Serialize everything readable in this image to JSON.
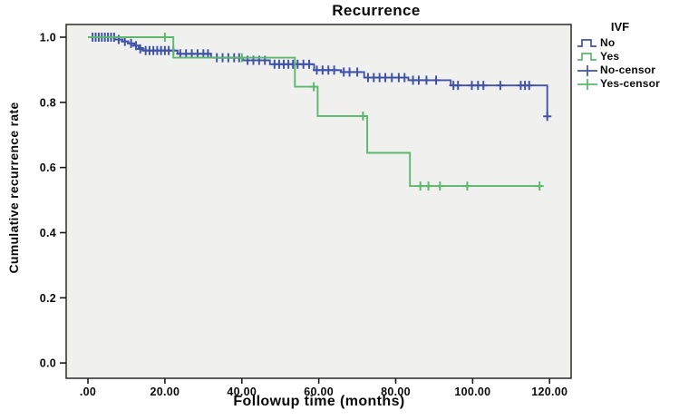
{
  "chart_data": {
    "type": "line",
    "subtype": "kaplan-meier-step",
    "title": "Recurrence",
    "xlabel": "Followup time (months)",
    "ylabel": "Cumulative recurrence rate",
    "grid": false,
    "plot_bg": "#f0f0ef",
    "border_color": "#2a2a2a",
    "xlim": [
      -5.66,
      125.6
    ],
    "ylim": [
      -0.047,
      1.039
    ],
    "x_ticks": [
      {
        "value": 0,
        "label": ".00"
      },
      {
        "value": 20,
        "label": "20.00"
      },
      {
        "value": 40,
        "label": "40.00"
      },
      {
        "value": 60,
        "label": "60.00"
      },
      {
        "value": 80,
        "label": "80.00"
      },
      {
        "value": 100,
        "label": "100.00"
      },
      {
        "value": 120,
        "label": "120.00"
      }
    ],
    "y_ticks": [
      {
        "value": 1.0,
        "label": "1.0"
      },
      {
        "value": 0.8,
        "label": "0.8"
      },
      {
        "value": 0.6,
        "label": "0.6"
      },
      {
        "value": 0.4,
        "label": "0.4"
      },
      {
        "value": 0.2,
        "label": "0.2"
      },
      {
        "value": 0.0,
        "label": "0.0"
      }
    ],
    "legend": {
      "title": "IVF",
      "position": "right",
      "items": [
        {
          "label": "No",
          "symbol": "step-line",
          "color": "#4153a7"
        },
        {
          "label": "Yes",
          "symbol": "step-line",
          "color": "#5cb86c"
        },
        {
          "label": "No-censor",
          "symbol": "plus",
          "color": "#4153a7"
        },
        {
          "label": "Yes-censor",
          "symbol": "plus",
          "color": "#5cb86c"
        }
      ]
    },
    "series": [
      {
        "name": "No",
        "color": "#4153a7",
        "end": 119.7,
        "steps": [
          [
            0,
            1.0
          ],
          [
            7,
            0.993
          ],
          [
            9,
            0.987
          ],
          [
            10.5,
            0.981
          ],
          [
            12,
            0.974
          ],
          [
            13.2,
            0.967
          ],
          [
            14.3,
            0.959
          ],
          [
            23.3,
            0.949
          ],
          [
            32,
            0.937
          ],
          [
            40.3,
            0.929
          ],
          [
            47.3,
            0.917
          ],
          [
            58.8,
            0.899
          ],
          [
            65.8,
            0.893
          ],
          [
            71.8,
            0.876
          ],
          [
            83.3,
            0.868
          ],
          [
            94.3,
            0.852
          ],
          [
            119.4,
            0.757
          ]
        ],
        "censors": [
          [
            1.2,
            1.0
          ],
          [
            2,
            1.0
          ],
          [
            2.8,
            1.0
          ],
          [
            3.6,
            1.0
          ],
          [
            4.4,
            1.0
          ],
          [
            5.2,
            1.0
          ],
          [
            6,
            1.0
          ],
          [
            6.8,
            1.0
          ],
          [
            8,
            0.993
          ],
          [
            9.6,
            0.987
          ],
          [
            11.2,
            0.981
          ],
          [
            12.5,
            0.974
          ],
          [
            13.6,
            0.964
          ],
          [
            15,
            0.959
          ],
          [
            16,
            0.959
          ],
          [
            17,
            0.959
          ],
          [
            18,
            0.959
          ],
          [
            19,
            0.959
          ],
          [
            20,
            0.959
          ],
          [
            21,
            0.959
          ],
          [
            22.2,
            0.959
          ],
          [
            24,
            0.949
          ],
          [
            25.5,
            0.949
          ],
          [
            27,
            0.949
          ],
          [
            28.5,
            0.949
          ],
          [
            30,
            0.949
          ],
          [
            31.2,
            0.949
          ],
          [
            33.5,
            0.937
          ],
          [
            35,
            0.937
          ],
          [
            36.5,
            0.937
          ],
          [
            38,
            0.937
          ],
          [
            39.3,
            0.937
          ],
          [
            41.5,
            0.929
          ],
          [
            43,
            0.929
          ],
          [
            44.5,
            0.929
          ],
          [
            46,
            0.929
          ],
          [
            48.5,
            0.917
          ],
          [
            49.7,
            0.917
          ],
          [
            50.9,
            0.917
          ],
          [
            52.1,
            0.917
          ],
          [
            53.3,
            0.917
          ],
          [
            54.5,
            0.917
          ],
          [
            56,
            0.917
          ],
          [
            57.5,
            0.917
          ],
          [
            59.5,
            0.899
          ],
          [
            61,
            0.899
          ],
          [
            62.5,
            0.899
          ],
          [
            64,
            0.899
          ],
          [
            66.5,
            0.893
          ],
          [
            68,
            0.893
          ],
          [
            70,
            0.893
          ],
          [
            72.8,
            0.876
          ],
          [
            74.3,
            0.876
          ],
          [
            75.8,
            0.876
          ],
          [
            77.3,
            0.876
          ],
          [
            79,
            0.876
          ],
          [
            80.8,
            0.876
          ],
          [
            82.3,
            0.876
          ],
          [
            84.5,
            0.868
          ],
          [
            86,
            0.868
          ],
          [
            88,
            0.868
          ],
          [
            90.5,
            0.868
          ],
          [
            95,
            0.852
          ],
          [
            96.2,
            0.852
          ],
          [
            99.8,
            0.852
          ],
          [
            101.4,
            0.852
          ],
          [
            102.8,
            0.852
          ],
          [
            107.2,
            0.852
          ],
          [
            112.5,
            0.852
          ],
          [
            113.6,
            0.852
          ],
          [
            114.7,
            0.852
          ],
          [
            119.4,
            0.757
          ]
        ]
      },
      {
        "name": "Yes",
        "color": "#5cb86c",
        "end": 117.4,
        "steps": [
          [
            0,
            1.0
          ],
          [
            22.2,
            0.937
          ],
          [
            53.8,
            0.848
          ],
          [
            59.7,
            0.758
          ],
          [
            72.6,
            0.645
          ],
          [
            83.7,
            0.543
          ]
        ],
        "censors": [
          [
            20,
            1.0
          ],
          [
            40,
            0.937
          ],
          [
            58.7,
            0.848
          ],
          [
            71.5,
            0.758
          ],
          [
            86.4,
            0.543
          ],
          [
            88.5,
            0.543
          ],
          [
            91.5,
            0.543
          ],
          [
            98.6,
            0.543
          ],
          [
            117.4,
            0.543
          ]
        ]
      }
    ]
  }
}
